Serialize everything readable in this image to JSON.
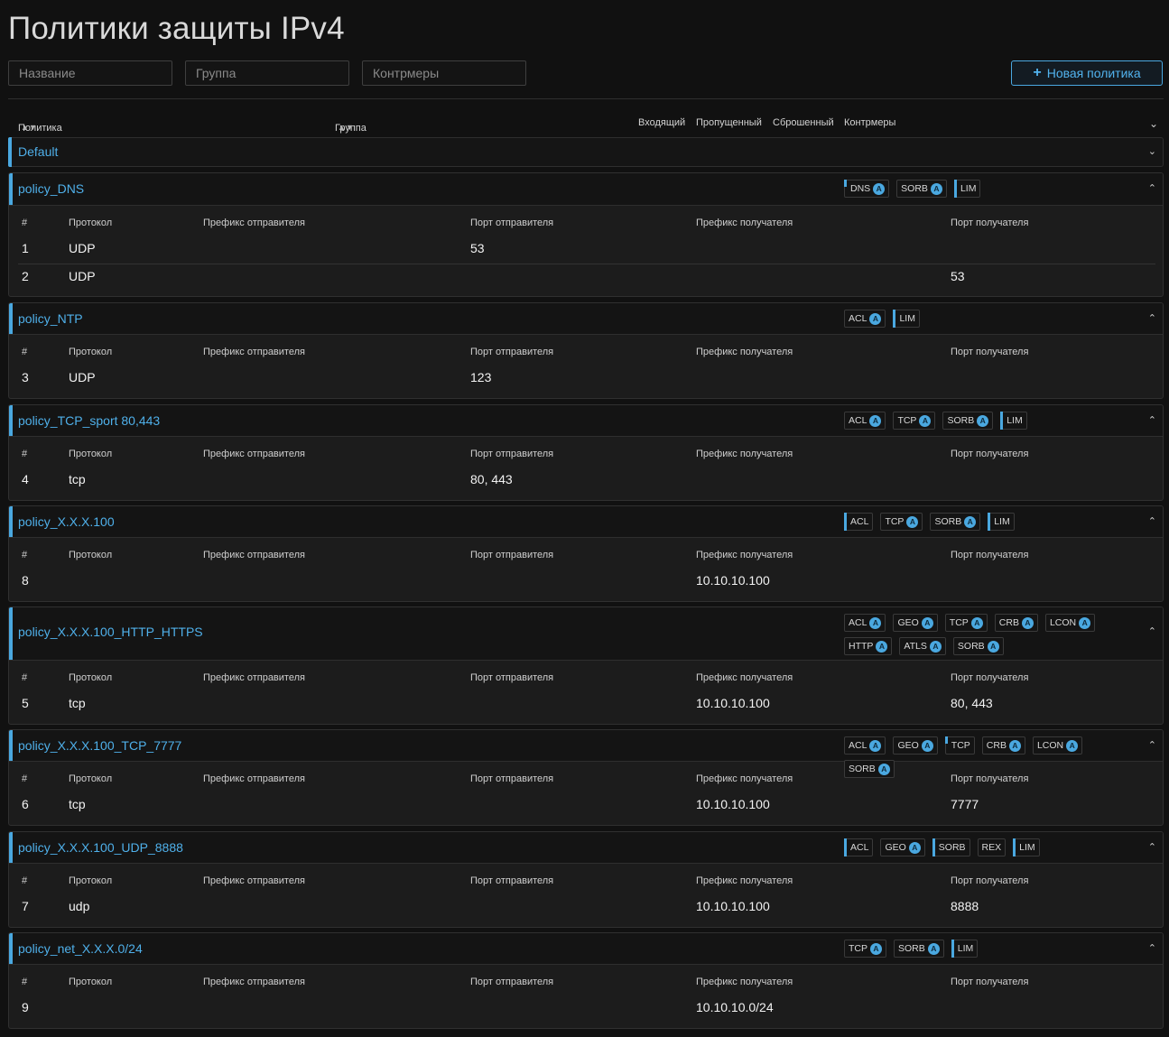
{
  "page": {
    "title": "Политики защиты IPv4"
  },
  "filters": {
    "name_placeholder": "Название",
    "group_placeholder": "Группа",
    "countermeasures_placeholder": "Контрмеры",
    "new_policy_label": "Новая политика"
  },
  "columns": {
    "policy": "Политика",
    "group": "Группа",
    "incoming": "Входящий",
    "passed": "Пропущенный",
    "dropped": "Сброшенный",
    "countermeasures": "Контрмеры"
  },
  "group_default": "Default",
  "rule_columns": {
    "num": "#",
    "protocol": "Протокол",
    "src_prefix": "Префикс отправителя",
    "src_port": "Порт отправителя",
    "dst_prefix": "Префикс получателя",
    "dst_port": "Порт получателя"
  },
  "badge_marker": "A",
  "policies": [
    {
      "name": "policy_DNS",
      "badges": [
        {
          "label": "DNS",
          "auto": true,
          "marker": "tick"
        },
        {
          "label": "SORB",
          "auto": true,
          "marker": ""
        },
        {
          "label": "LIM",
          "auto": false,
          "marker": "bar"
        }
      ],
      "rules": [
        {
          "num": "1",
          "protocol": "UDP",
          "src_prefix": "",
          "src_port": "53",
          "dst_prefix": "",
          "dst_port": ""
        },
        {
          "num": "2",
          "protocol": "UDP",
          "src_prefix": "",
          "src_port": "",
          "dst_prefix": "",
          "dst_port": "53"
        }
      ]
    },
    {
      "name": "policy_NTP",
      "badges": [
        {
          "label": "ACL",
          "auto": true,
          "marker": ""
        },
        {
          "label": "LIM",
          "auto": false,
          "marker": "bar"
        }
      ],
      "rules": [
        {
          "num": "3",
          "protocol": "UDP",
          "src_prefix": "",
          "src_port": "123",
          "dst_prefix": "",
          "dst_port": ""
        }
      ]
    },
    {
      "name": "policy_TCP_sport 80,443",
      "badges": [
        {
          "label": "ACL",
          "auto": true,
          "marker": ""
        },
        {
          "label": "TCP",
          "auto": true,
          "marker": ""
        },
        {
          "label": "SORB",
          "auto": true,
          "marker": ""
        },
        {
          "label": "LIM",
          "auto": false,
          "marker": "bar"
        }
      ],
      "rules": [
        {
          "num": "4",
          "protocol": "tcp",
          "src_prefix": "",
          "src_port": "80, 443",
          "dst_prefix": "",
          "dst_port": ""
        }
      ]
    },
    {
      "name": "policy_X.X.X.100",
      "badges": [
        {
          "label": "ACL",
          "auto": false,
          "marker": "bar"
        },
        {
          "label": "TCP",
          "auto": true,
          "marker": ""
        },
        {
          "label": "SORB",
          "auto": true,
          "marker": ""
        },
        {
          "label": "LIM",
          "auto": false,
          "marker": "bar"
        }
      ],
      "rules": [
        {
          "num": "8",
          "protocol": "",
          "src_prefix": "",
          "src_port": "",
          "dst_prefix": "10.10.10.100",
          "dst_port": ""
        }
      ]
    },
    {
      "name": "policy_X.X.X.100_HTTP_HTTPS",
      "badges": [
        {
          "label": "ACL",
          "auto": true,
          "marker": ""
        },
        {
          "label": "GEO",
          "auto": true,
          "marker": ""
        },
        {
          "label": "TCP",
          "auto": true,
          "marker": ""
        },
        {
          "label": "CRB",
          "auto": true,
          "marker": ""
        },
        {
          "label": "LCON",
          "auto": true,
          "marker": ""
        },
        {
          "label": "HTTP",
          "auto": true,
          "marker": ""
        },
        {
          "label": "ATLS",
          "auto": true,
          "marker": ""
        },
        {
          "label": "SORB",
          "auto": true,
          "marker": ""
        }
      ],
      "rules": [
        {
          "num": "5",
          "protocol": "tcp",
          "src_prefix": "",
          "src_port": "",
          "dst_prefix": "10.10.10.100",
          "dst_port": "80, 443"
        }
      ]
    },
    {
      "name": "policy_X.X.X.100_TCP_7777",
      "badges": [
        {
          "label": "ACL",
          "auto": true,
          "marker": ""
        },
        {
          "label": "GEO",
          "auto": true,
          "marker": ""
        },
        {
          "label": "TCP",
          "auto": false,
          "marker": "tick"
        },
        {
          "label": "CRB",
          "auto": true,
          "marker": ""
        },
        {
          "label": "LCON",
          "auto": true,
          "marker": ""
        },
        {
          "label": "SORB",
          "auto": true,
          "marker": ""
        }
      ],
      "rules": [
        {
          "num": "6",
          "protocol": "tcp",
          "src_prefix": "",
          "src_port": "",
          "dst_prefix": "10.10.10.100",
          "dst_port": "7777"
        }
      ]
    },
    {
      "name": "policy_X.X.X.100_UDP_8888",
      "badges": [
        {
          "label": "ACL",
          "auto": false,
          "marker": "bar"
        },
        {
          "label": "GEO",
          "auto": true,
          "marker": ""
        },
        {
          "label": "SORB",
          "auto": false,
          "marker": "bar"
        },
        {
          "label": "REX",
          "auto": false,
          "marker": ""
        },
        {
          "label": "LIM",
          "auto": false,
          "marker": "bar"
        }
      ],
      "rules": [
        {
          "num": "7",
          "protocol": "udp",
          "src_prefix": "",
          "src_port": "",
          "dst_prefix": "10.10.10.100",
          "dst_port": "8888"
        }
      ]
    },
    {
      "name": "policy_net_X.X.X.0/24",
      "badges": [
        {
          "label": "TCP",
          "auto": true,
          "marker": ""
        },
        {
          "label": "SORB",
          "auto": true,
          "marker": ""
        },
        {
          "label": "LIM",
          "auto": false,
          "marker": "bar"
        }
      ],
      "rules": [
        {
          "num": "9",
          "protocol": "",
          "src_prefix": "",
          "src_port": "",
          "dst_prefix": "10.10.10.0/24",
          "dst_port": ""
        }
      ]
    }
  ]
}
